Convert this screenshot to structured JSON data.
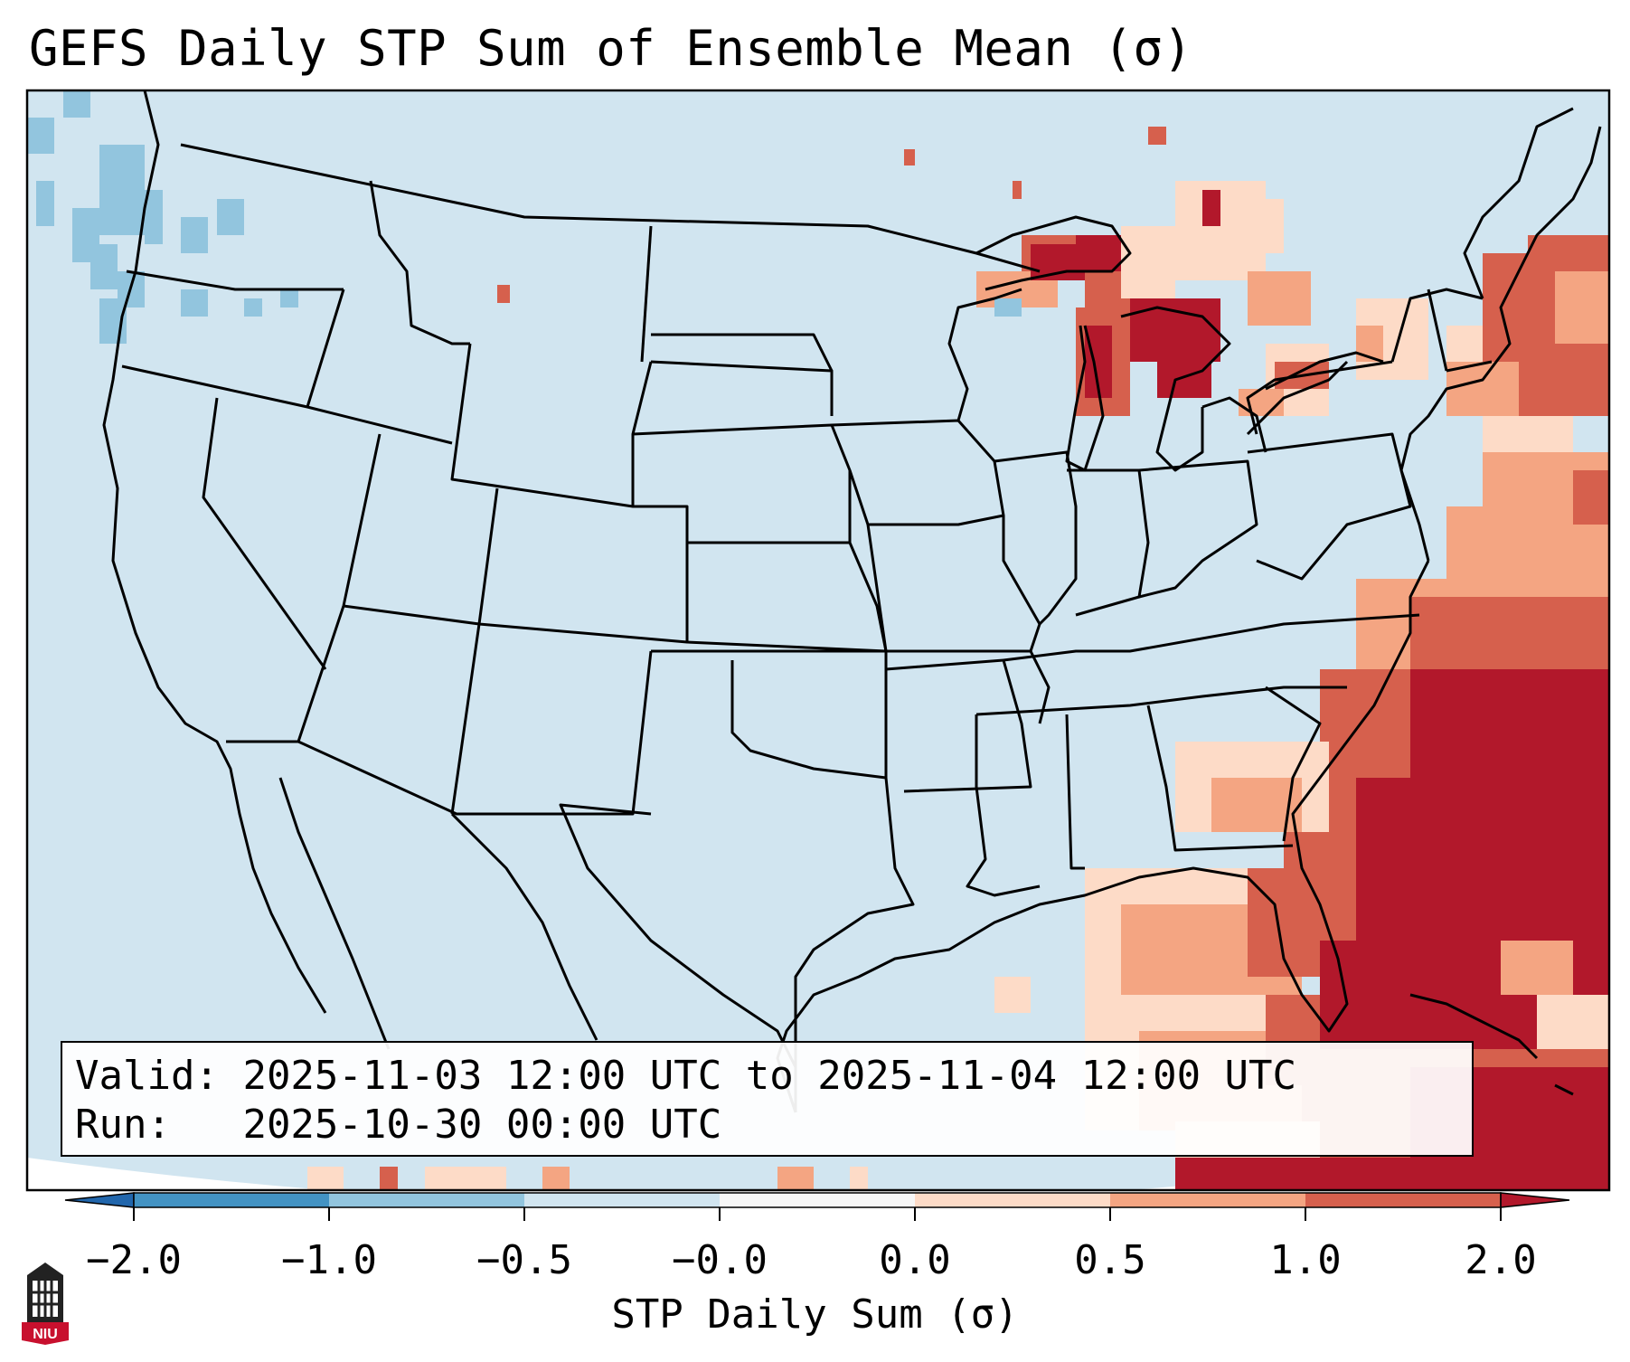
{
  "title": "GEFS Daily STP Sum of Ensemble Mean (σ)",
  "info": {
    "valid_label": "Valid:",
    "valid_value": "2025-11-03 12:00 UTC to 2025-11-04 12:00 UTC",
    "run_label": "Run:",
    "run_value": "2025-10-30 00:00 UTC"
  },
  "colorbar": {
    "label": "STP Daily Sum (σ)",
    "ticks": [
      "−2.0",
      "−1.0",
      "−0.5",
      "−0.0",
      "0.0",
      "0.5",
      "1.0",
      "2.0"
    ],
    "colors": [
      "#4393c3",
      "#92c5de",
      "#d1e5f0",
      "#f7f7f7",
      "#fddbc7",
      "#f4a582",
      "#d6604d",
      "#b2182b"
    ],
    "extend": "both"
  },
  "logo": {
    "text": "NIU"
  }
}
